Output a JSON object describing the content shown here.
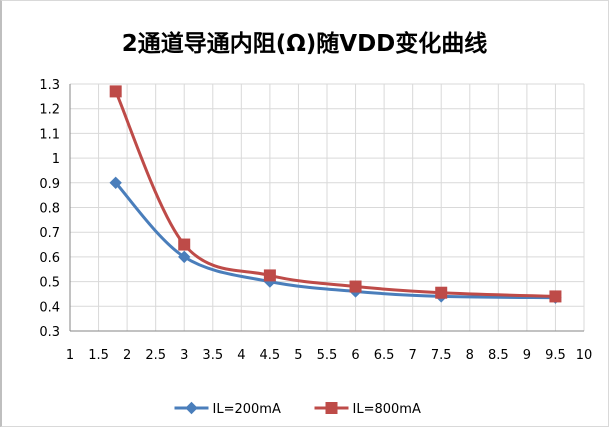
{
  "chart_data": {
    "type": "line",
    "title": "2通道导通内阻(Ω)随VDD变化曲线",
    "xlabel": "",
    "ylabel": "",
    "xlim": [
      1,
      10
    ],
    "ylim": [
      0.3,
      1.3
    ],
    "x_ticks": [
      "1",
      "1.5",
      "2",
      "2.5",
      "3",
      "3.5",
      "4",
      "4.5",
      "5",
      "5.5",
      "6",
      "6.5",
      "7",
      "7.5",
      "8",
      "8.5",
      "9",
      "9.5",
      "10"
    ],
    "y_ticks": [
      "0.3",
      "0.4",
      "0.5",
      "0.6",
      "0.7",
      "0.8",
      "0.9",
      "1",
      "1.1",
      "1.2",
      "1.3"
    ],
    "grid": true,
    "smooth": true,
    "legend_position": "bottom",
    "series": [
      {
        "name": "IL=200mA",
        "color": "#4a7ebb",
        "marker": "diamond",
        "x": [
          1.8,
          3,
          4.5,
          6,
          7.5,
          9.5
        ],
        "values": [
          0.9,
          0.6,
          0.5,
          0.46,
          0.44,
          0.435
        ]
      },
      {
        "name": "IL=800mA",
        "color": "#be4b48",
        "marker": "square",
        "x": [
          1.8,
          3,
          4.5,
          6,
          7.5,
          9.5
        ],
        "values": [
          1.27,
          0.65,
          0.525,
          0.48,
          0.455,
          0.44
        ]
      }
    ]
  }
}
